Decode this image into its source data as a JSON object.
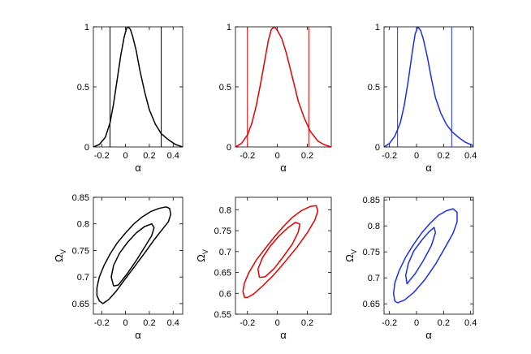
{
  "chart_data": [
    {
      "type": "line",
      "panel": "top-left",
      "xlabel": "α",
      "ylabel": "",
      "xlim": [
        -0.27,
        0.48
      ],
      "ylim": [
        0,
        1
      ],
      "xticks": [
        "-0.2",
        "0",
        "0.2",
        "0.4"
      ],
      "yticks": [
        "0",
        "0.5",
        "1"
      ],
      "color": "#000000",
      "series": [
        {
          "name": "likelihood",
          "x": [
            -0.27,
            -0.22,
            -0.17,
            -0.13,
            -0.1,
            -0.07,
            -0.04,
            -0.01,
            0.01,
            0.02,
            0.04,
            0.06,
            0.09,
            0.12,
            0.16,
            0.2,
            0.25,
            0.3,
            0.36,
            0.42,
            0.48
          ],
          "values": [
            0.0,
            0.02,
            0.08,
            0.2,
            0.36,
            0.56,
            0.76,
            0.92,
            0.99,
            1.0,
            0.98,
            0.92,
            0.8,
            0.64,
            0.46,
            0.31,
            0.19,
            0.11,
            0.06,
            0.02,
            0.0
          ]
        }
      ],
      "vlines": [
        -0.13,
        0.3
      ]
    },
    {
      "type": "line",
      "panel": "top-middle",
      "xlabel": "α",
      "ylabel": "",
      "xlim": [
        -0.28,
        0.36
      ],
      "ylim": [
        0,
        1
      ],
      "xticks": [
        "-0.2",
        "0",
        "0.2"
      ],
      "yticks": [
        "0",
        "0.5",
        "1"
      ],
      "color": "#e00000",
      "series": [
        {
          "name": "likelihood",
          "x": [
            -0.28,
            -0.24,
            -0.2,
            -0.17,
            -0.14,
            -0.11,
            -0.08,
            -0.06,
            -0.04,
            -0.02,
            0.0,
            0.03,
            0.06,
            0.1,
            0.14,
            0.18,
            0.22,
            0.27,
            0.31,
            0.36
          ],
          "values": [
            0.0,
            0.03,
            0.1,
            0.2,
            0.35,
            0.54,
            0.75,
            0.89,
            0.98,
            1.0,
            0.97,
            0.9,
            0.78,
            0.58,
            0.38,
            0.24,
            0.13,
            0.05,
            0.02,
            0.0
          ]
        }
      ],
      "vlines": [
        -0.2,
        0.21
      ]
    },
    {
      "type": "line",
      "panel": "top-right",
      "xlabel": "α",
      "ylabel": "",
      "xlim": [
        -0.24,
        0.42
      ],
      "ylim": [
        0,
        1
      ],
      "xticks": [
        "-0.2",
        "0",
        "0.2",
        "0.4"
      ],
      "yticks": [
        "0",
        "0.5",
        "1"
      ],
      "color": "#1a2ee6",
      "series": [
        {
          "name": "likelihood",
          "x": [
            -0.24,
            -0.2,
            -0.16,
            -0.12,
            -0.09,
            -0.06,
            -0.03,
            -0.01,
            0.01,
            0.03,
            0.05,
            0.08,
            0.11,
            0.14,
            0.18,
            0.22,
            0.26,
            0.31,
            0.36,
            0.42
          ],
          "values": [
            0.0,
            0.03,
            0.09,
            0.2,
            0.35,
            0.56,
            0.8,
            0.94,
            1.0,
            0.97,
            0.9,
            0.75,
            0.57,
            0.41,
            0.28,
            0.19,
            0.13,
            0.08,
            0.04,
            0.01
          ]
        }
      ],
      "vlines": [
        -0.14,
        0.26
      ]
    },
    {
      "type": "line",
      "panel": "bottom-left",
      "xlabel": "α",
      "ylabel": "Ω",
      "ylabel_sub": "V",
      "xlim": [
        -0.27,
        0.48
      ],
      "ylim": [
        0.63,
        0.85
      ],
      "xticks": [
        "-0.2",
        "0",
        "0.2",
        "0.4"
      ],
      "yticks": [
        "0.65",
        "0.7",
        "0.75",
        "0.8",
        "0.85"
      ],
      "color": "#000000",
      "series": [
        {
          "name": "outer contour",
          "x": [
            -0.22,
            -0.24,
            -0.24,
            -0.22,
            -0.18,
            -0.13,
            -0.07,
            0.0,
            0.07,
            0.14,
            0.21,
            0.28,
            0.34,
            0.37,
            0.38,
            0.36,
            0.31,
            0.24,
            0.16,
            0.07,
            -0.01,
            -0.08,
            -0.14,
            -0.19,
            -0.22
          ],
          "values": [
            0.655,
            0.665,
            0.68,
            0.7,
            0.722,
            0.743,
            0.764,
            0.783,
            0.8,
            0.813,
            0.823,
            0.829,
            0.832,
            0.829,
            0.818,
            0.804,
            0.79,
            0.77,
            0.745,
            0.718,
            0.694,
            0.673,
            0.658,
            0.65,
            0.655
          ]
        },
        {
          "name": "inner contour",
          "x": [
            -0.1,
            -0.12,
            -0.1,
            -0.05,
            0.02,
            0.09,
            0.16,
            0.22,
            0.24,
            0.22,
            0.16,
            0.09,
            0.01,
            -0.06,
            -0.1
          ],
          "values": [
            0.683,
            0.7,
            0.722,
            0.745,
            0.766,
            0.783,
            0.795,
            0.8,
            0.793,
            0.778,
            0.756,
            0.731,
            0.705,
            0.685,
            0.683
          ]
        }
      ]
    },
    {
      "type": "line",
      "panel": "bottom-middle",
      "xlabel": "α",
      "ylabel": "Ω",
      "ylabel_sub": "V",
      "xlim": [
        -0.28,
        0.36
      ],
      "ylim": [
        0.55,
        0.83
      ],
      "xticks": [
        "-0.2",
        "0",
        "0.2"
      ],
      "yticks": [
        "0.55",
        "0.6",
        "0.65",
        "0.7",
        "0.75",
        "0.8"
      ],
      "color": "#e00000",
      "series": [
        {
          "name": "outer contour",
          "x": [
            -0.22,
            -0.23,
            -0.22,
            -0.19,
            -0.14,
            -0.08,
            -0.02,
            0.04,
            0.1,
            0.16,
            0.22,
            0.26,
            0.27,
            0.25,
            0.2,
            0.13,
            0.05,
            -0.03,
            -0.1,
            -0.16,
            -0.2,
            -0.22
          ],
          "values": [
            0.59,
            0.605,
            0.625,
            0.65,
            0.68,
            0.708,
            0.735,
            0.76,
            0.782,
            0.798,
            0.808,
            0.81,
            0.797,
            0.775,
            0.745,
            0.71,
            0.675,
            0.642,
            0.617,
            0.598,
            0.59,
            0.59
          ]
        },
        {
          "name": "inner contour",
          "x": [
            -0.12,
            -0.13,
            -0.1,
            -0.05,
            0.01,
            0.07,
            0.12,
            0.15,
            0.14,
            0.1,
            0.04,
            -0.02,
            -0.08,
            -0.12
          ],
          "values": [
            0.638,
            0.658,
            0.685,
            0.712,
            0.737,
            0.757,
            0.77,
            0.766,
            0.747,
            0.718,
            0.688,
            0.66,
            0.64,
            0.638
          ]
        }
      ]
    },
    {
      "type": "line",
      "panel": "bottom-right",
      "xlabel": "α",
      "ylabel": "Ω",
      "ylabel_sub": "V",
      "xlim": [
        -0.24,
        0.42
      ],
      "ylim": [
        0.63,
        0.855
      ],
      "xticks": [
        "-0.2",
        "0",
        "0.2",
        "0.4"
      ],
      "yticks": [
        "0.65",
        "0.7",
        "0.75",
        "0.8",
        "0.85"
      ],
      "color": "#1a2ee6",
      "series": [
        {
          "name": "outer contour",
          "x": [
            -0.16,
            -0.17,
            -0.16,
            -0.13,
            -0.08,
            -0.02,
            0.04,
            0.1,
            0.16,
            0.22,
            0.27,
            0.3,
            0.3,
            0.27,
            0.21,
            0.14,
            0.06,
            -0.02,
            -0.09,
            -0.14,
            -0.16
          ],
          "values": [
            0.655,
            0.67,
            0.69,
            0.713,
            0.74,
            0.765,
            0.787,
            0.805,
            0.82,
            0.829,
            0.833,
            0.826,
            0.808,
            0.786,
            0.758,
            0.726,
            0.696,
            0.672,
            0.657,
            0.652,
            0.655
          ]
        },
        {
          "name": "inner contour",
          "x": [
            -0.07,
            -0.08,
            -0.06,
            -0.02,
            0.04,
            0.09,
            0.13,
            0.14,
            0.11,
            0.05,
            -0.01,
            -0.06,
            -0.07
          ],
          "values": [
            0.688,
            0.705,
            0.728,
            0.752,
            0.773,
            0.788,
            0.797,
            0.787,
            0.762,
            0.733,
            0.708,
            0.692,
            0.688
          ]
        }
      ]
    }
  ]
}
